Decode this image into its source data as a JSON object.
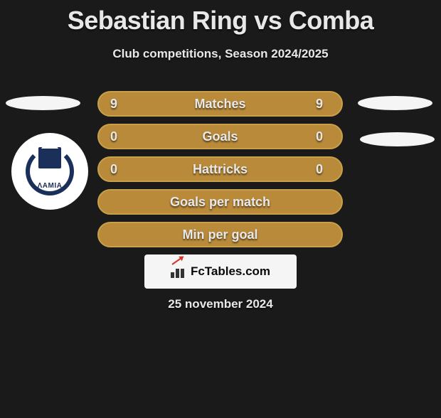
{
  "title": "Sebastian Ring vs Comba",
  "subtitle": "Club competitions, Season 2024/2025",
  "badge": {
    "label": "ΛAMIA",
    "bg_color": "#ffffff",
    "primary_color": "#1a2f5a"
  },
  "bars": [
    {
      "left": "9",
      "label": "Matches",
      "right": "9"
    },
    {
      "left": "0",
      "label": "Goals",
      "right": "0"
    },
    {
      "left": "0",
      "label": "Hattricks",
      "right": "0"
    },
    {
      "left": "",
      "label": "Goals per match",
      "right": ""
    },
    {
      "left": "",
      "label": "Min per goal",
      "right": ""
    }
  ],
  "bar_style": {
    "fill_color": "#b88a3a",
    "border_color": "#c9a04a",
    "text_color": "#e8e8e8",
    "font_size": 18
  },
  "watermark": {
    "text": "FcTables.com",
    "bg_color": "#f5f5f5",
    "text_color": "#0a0a0a",
    "arrow_color": "#d4342a"
  },
  "date": "25 november 2024",
  "page_bg": "#1a1a1a",
  "ellipse_color": "#f5f5f5"
}
